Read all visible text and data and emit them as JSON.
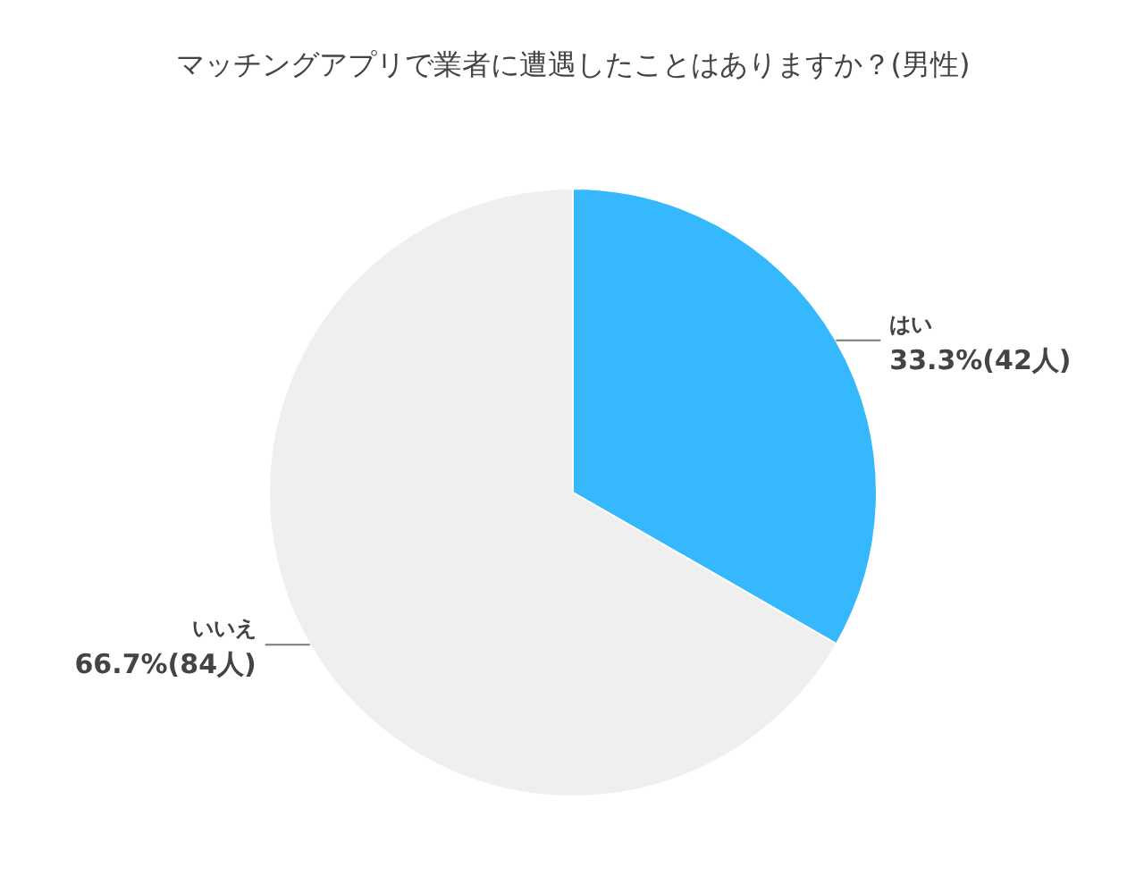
{
  "chart_data": {
    "type": "pie",
    "title": "マッチングアプリで業者に遭遇したことはありますか？(男性)",
    "categories": [
      "はい",
      "いいえ"
    ],
    "values": [
      33.3,
      66.7
    ],
    "colors": [
      "#35b8fe",
      "#efefef"
    ],
    "value_labels": [
      "33.3%(42人)",
      "66.7%(84人)"
    ],
    "legend": false
  }
}
